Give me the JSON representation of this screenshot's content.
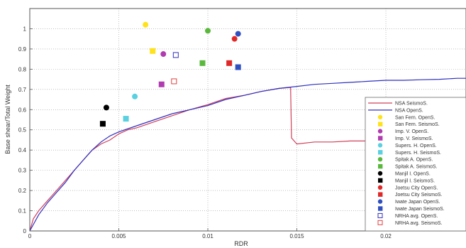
{
  "chart_data": {
    "type": "scatter",
    "title": "",
    "xlabel": "RDR",
    "ylabel": "Base shear/Total Weight",
    "xlim": [
      0,
      0.0245
    ],
    "ylim": [
      0,
      1.1
    ],
    "x_ticks": [
      {
        "value": 0,
        "label": "0"
      },
      {
        "value": 0.005,
        "label": "0.005"
      },
      {
        "value": 0.01,
        "label": "0.01"
      },
      {
        "value": 0.015,
        "label": "0.015"
      },
      {
        "value": 0.02,
        "label": "0.02"
      }
    ],
    "y_ticks": [
      {
        "value": 0,
        "label": "0"
      },
      {
        "value": 0.1,
        "label": "0.1"
      },
      {
        "value": 0.2,
        "label": "0.2"
      },
      {
        "value": 0.3,
        "label": "0.3"
      },
      {
        "value": 0.4,
        "label": "0.4"
      },
      {
        "value": 0.5,
        "label": "0.5"
      },
      {
        "value": 0.6,
        "label": "0.6"
      },
      {
        "value": 0.7,
        "label": "0.7"
      },
      {
        "value": 0.8,
        "label": "0.8"
      },
      {
        "value": 0.9,
        "label": "0.9"
      },
      {
        "value": 1,
        "label": "1"
      }
    ],
    "grid": true,
    "legend_position": "right",
    "series": [
      {
        "name": "NSA SeismoS.",
        "kind": "line",
        "color": "#d0405a",
        "x": [
          0,
          0.0002,
          0.0005,
          0.001,
          0.0015,
          0.002,
          0.0025,
          0.003,
          0.0035,
          0.004,
          0.0045,
          0.005,
          0.0055,
          0.006,
          0.007,
          0.008,
          0.009,
          0.01,
          0.011,
          0.012,
          0.013,
          0.014,
          0.01465,
          0.0147,
          0.015,
          0.016,
          0.017,
          0.018,
          0.019,
          0.02,
          0.021,
          0.022,
          0.023,
          0.0245
        ],
        "y": [
          0,
          0.06,
          0.1,
          0.15,
          0.2,
          0.25,
          0.3,
          0.35,
          0.4,
          0.43,
          0.45,
          0.48,
          0.5,
          0.51,
          0.54,
          0.57,
          0.6,
          0.625,
          0.655,
          0.67,
          0.69,
          0.705,
          0.71,
          0.46,
          0.43,
          0.44,
          0.44,
          0.445,
          0.445,
          0.45,
          0.45,
          0.45,
          0.45,
          0.455
        ]
      },
      {
        "name": "NSA OpenS.",
        "kind": "line",
        "color": "#3030c0",
        "x": [
          0,
          0.0005,
          0.001,
          0.0015,
          0.002,
          0.0025,
          0.003,
          0.0035,
          0.004,
          0.0045,
          0.005,
          0.006,
          0.007,
          0.008,
          0.009,
          0.01,
          0.011,
          0.012,
          0.013,
          0.014,
          0.015,
          0.016,
          0.017,
          0.018,
          0.019,
          0.02,
          0.021,
          0.022,
          0.023,
          0.024,
          0.0245
        ],
        "y": [
          0,
          0.08,
          0.14,
          0.19,
          0.24,
          0.3,
          0.35,
          0.4,
          0.44,
          0.47,
          0.49,
          0.52,
          0.55,
          0.58,
          0.6,
          0.62,
          0.65,
          0.67,
          0.69,
          0.705,
          0.715,
          0.725,
          0.73,
          0.735,
          0.74,
          0.745,
          0.745,
          0.748,
          0.75,
          0.755,
          0.755
        ]
      },
      {
        "name": "San Fern. OpenS.",
        "kind": "point",
        "marker": "circle",
        "color": "#ffe21a",
        "x": [
          0.0065
        ],
        "y": [
          1.02
        ]
      },
      {
        "name": "San Fern. SeismoS.",
        "kind": "point",
        "marker": "square",
        "color": "#ffe21a",
        "x": [
          0.0069
        ],
        "y": [
          0.89
        ]
      },
      {
        "name": "Imp. V. OpenS.",
        "kind": "point",
        "marker": "circle",
        "color": "#b03cb0",
        "x": [
          0.0075
        ],
        "y": [
          0.875
        ]
      },
      {
        "name": "Imp. V. SeismoS.",
        "kind": "point",
        "marker": "square",
        "color": "#b03cb0",
        "x": [
          0.0074
        ],
        "y": [
          0.725
        ]
      },
      {
        "name": "Supers. H. OpenS.",
        "kind": "point",
        "marker": "circle",
        "color": "#5ad0e0",
        "x": [
          0.0059
        ],
        "y": [
          0.665
        ]
      },
      {
        "name": "Supers. H. SeismoS.",
        "kind": "point",
        "marker": "square",
        "color": "#5ad0e0",
        "x": [
          0.0054
        ],
        "y": [
          0.555
        ]
      },
      {
        "name": "Spitak A. OpenS.",
        "kind": "point",
        "marker": "circle",
        "color": "#5ab83c",
        "x": [
          0.01
        ],
        "y": [
          0.99
        ]
      },
      {
        "name": "Spitak A. SeismoS.",
        "kind": "point",
        "marker": "square",
        "color": "#5ab83c",
        "x": [
          0.0097
        ],
        "y": [
          0.83
        ]
      },
      {
        "name": "Manjil I. OpenS.",
        "kind": "point",
        "marker": "circle",
        "color": "#000000",
        "x": [
          0.0043
        ],
        "y": [
          0.61
        ]
      },
      {
        "name": "Manjil I. SeismoS.",
        "kind": "point",
        "marker": "square",
        "color": "#000000",
        "x": [
          0.0041
        ],
        "y": [
          0.53
        ]
      },
      {
        "name": "Joetsu City OpenS.",
        "kind": "point",
        "marker": "circle",
        "color": "#e02828",
        "x": [
          0.0115
        ],
        "y": [
          0.95
        ]
      },
      {
        "name": "Joetsu City SeismoS.",
        "kind": "point",
        "marker": "square",
        "color": "#e02828",
        "x": [
          0.0112
        ],
        "y": [
          0.83
        ]
      },
      {
        "name": "Iwate Japan OpenS.",
        "kind": "point",
        "marker": "circle",
        "color": "#3050c0",
        "x": [
          0.0117
        ],
        "y": [
          0.975
        ]
      },
      {
        "name": "Iwate Japan SeismoS.",
        "kind": "point",
        "marker": "square",
        "color": "#3050c0",
        "x": [
          0.0117
        ],
        "y": [
          0.81
        ]
      },
      {
        "name": "NRHA avg. OpenS.",
        "kind": "point",
        "marker": "open-square",
        "color": "#3030c0",
        "x": [
          0.0082
        ],
        "y": [
          0.87
        ]
      },
      {
        "name": "NRHA avg. SeismoS.",
        "kind": "point",
        "marker": "open-square",
        "color": "#e04040",
        "x": [
          0.0081
        ],
        "y": [
          0.74
        ]
      }
    ]
  }
}
